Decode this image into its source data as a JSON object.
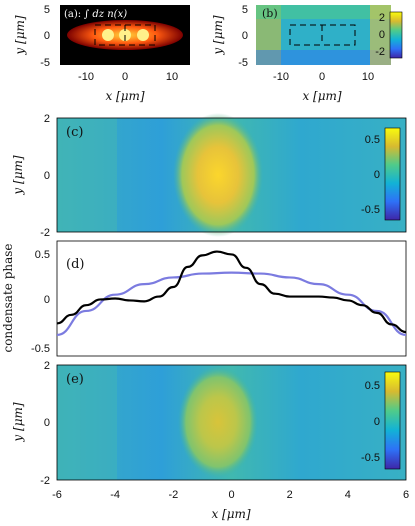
{
  "panels": {
    "a": {
      "label": "(a):",
      "annotation": "∫ dz n(x)",
      "x_ticks": [
        "-10",
        "0",
        "10"
      ],
      "y_ticks": [
        "5",
        "0",
        "-5"
      ],
      "xlabel": "x [μm]",
      "ylabel": "y [μm]"
    },
    "b": {
      "label": "(b)",
      "x_ticks": [
        "-10",
        "0",
        "10"
      ],
      "y_ticks": [
        "5",
        "0",
        "-5"
      ],
      "xlabel": "x [μm]",
      "ylabel": "y [μm]",
      "colorbar_ticks": [
        "2",
        "0",
        "-2"
      ]
    },
    "c": {
      "label": "(c)",
      "y_ticks": [
        "2",
        "0",
        "-2"
      ],
      "ylabel": "y [μm]",
      "colorbar_ticks": [
        "0.5",
        "0",
        "-0.5"
      ]
    },
    "d": {
      "label": "(d)",
      "y_ticks": [
        "0.5",
        "0",
        "-0.5"
      ],
      "ylabel": "condensate phase"
    },
    "e": {
      "label": "(e)",
      "y_ticks": [
        "2",
        "0",
        "-2"
      ],
      "ylabel": "y [μm]",
      "colorbar_ticks": [
        "0.5",
        "0",
        "-0.5"
      ],
      "x_ticks": [
        "-6",
        "-4",
        "-2",
        "0",
        "2",
        "4",
        "6"
      ],
      "xlabel": "x [μm]"
    }
  },
  "chart_data": [
    {
      "type": "heatmap",
      "panel": "a",
      "xlim": [
        -17,
        17
      ],
      "ylim": [
        -6,
        6
      ],
      "colormap": "hot",
      "peaks_x": [
        -5,
        0,
        5
      ]
    },
    {
      "type": "heatmap",
      "panel": "b",
      "xlim": [
        -17,
        17
      ],
      "ylim": [
        -6,
        6
      ],
      "clim": [
        -3,
        3
      ],
      "colormap": "parula"
    },
    {
      "type": "heatmap",
      "panel": "c",
      "xlim": [
        -6,
        6
      ],
      "ylim": [
        -2,
        2
      ],
      "clim": [
        -0.7,
        0.7
      ],
      "colormap": "parula",
      "peak": {
        "x": -0.4,
        "y": 0,
        "value": 0.6
      }
    },
    {
      "type": "line",
      "panel": "d",
      "xlim": [
        -6,
        6
      ],
      "ylim": [
        -0.6,
        0.6
      ],
      "series": [
        {
          "color": "#000000",
          "x": [
            -6,
            -5.5,
            -5,
            -4.5,
            -4,
            -3.5,
            -3,
            -2.5,
            -2,
            -1.5,
            -1,
            -0.5,
            0,
            0.5,
            1,
            1.5,
            2,
            2.5,
            3,
            3.5,
            4,
            4.5,
            5,
            5.5,
            6
          ],
          "y": [
            -0.26,
            -0.17,
            -0.07,
            -0.01,
            0.0,
            -0.02,
            -0.03,
            0.02,
            0.12,
            0.33,
            0.45,
            0.49,
            0.46,
            0.32,
            0.15,
            0.05,
            0.02,
            0.02,
            0.02,
            0.01,
            -0.02,
            -0.07,
            -0.15,
            -0.27,
            -0.35
          ]
        },
        {
          "color": "#7b7be0",
          "x": [
            -6,
            -5,
            -4,
            -3,
            -2,
            -1,
            0,
            1,
            2,
            3,
            4,
            5,
            6
          ],
          "y": [
            -0.38,
            -0.13,
            0.04,
            0.15,
            0.22,
            0.26,
            0.27,
            0.26,
            0.22,
            0.15,
            0.04,
            -0.13,
            -0.38
          ]
        }
      ]
    },
    {
      "type": "heatmap",
      "panel": "e",
      "xlim": [
        -6,
        6
      ],
      "ylim": [
        -2,
        2
      ],
      "clim": [
        -0.7,
        0.7
      ],
      "colormap": "parula",
      "peak": {
        "x": -0.4,
        "y": 0,
        "value": 0.35
      }
    }
  ]
}
